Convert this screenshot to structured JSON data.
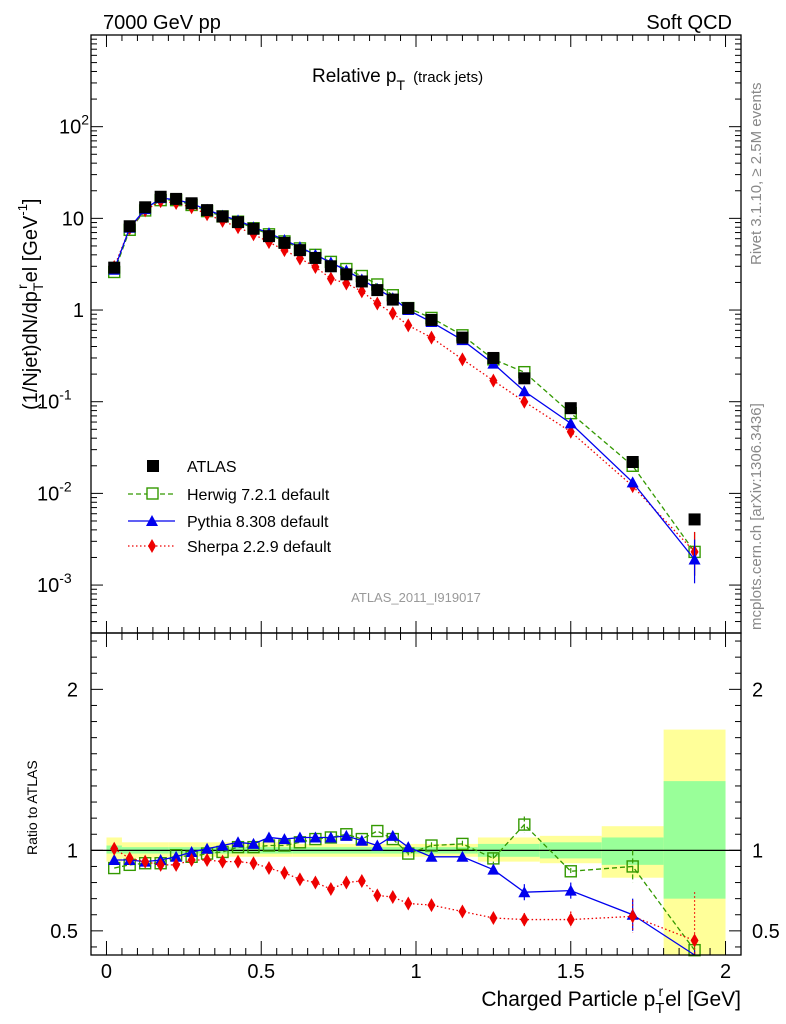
{
  "header": {
    "left": "7000 GeV pp",
    "right": "Soft QCD"
  },
  "side_labels": {
    "rivet": "Rivet 3.1.10, ≥ 2.5M events",
    "mcplots": "mcplots.cern.ch [arXiv:1306.3436]"
  },
  "analysis_id": "ATLAS_2011_I919017",
  "colors": {
    "atlas": "#000000",
    "herwig": "#339900",
    "pythia": "#0000ee",
    "sherpa": "#ee0000",
    "band_inner": "#99ff99",
    "band_outer": "#ffff99"
  },
  "chart_data": [
    {
      "type": "line",
      "scale": "log",
      "title_main": "Relative p",
      "title_sub": "T",
      "title_suffix": "(track jets)",
      "ylabel_main": "(1/Njet)dN/dp",
      "ylabel_sub": "T",
      "ylabel_sup": "r",
      "ylabel_rest": "el [GeV",
      "ylabel_unit_sup": "-1",
      "ylabel_close": "]",
      "ylim": [
        0.0003,
        1000
      ],
      "xlim": [
        -0.05,
        2.05
      ],
      "y_ticks": [
        {
          "value": 0.001,
          "base": "10",
          "exp": "-3"
        },
        {
          "value": 0.01,
          "base": "10",
          "exp": "-2"
        },
        {
          "value": 0.1,
          "base": "10",
          "exp": "-1"
        },
        {
          "value": 1,
          "base": "1",
          "exp": ""
        },
        {
          "value": 10,
          "base": "10",
          "exp": ""
        },
        {
          "value": 100,
          "base": "10",
          "exp": "2"
        }
      ],
      "x": [
        0.025,
        0.075,
        0.125,
        0.175,
        0.225,
        0.275,
        0.325,
        0.375,
        0.425,
        0.475,
        0.525,
        0.575,
        0.625,
        0.675,
        0.725,
        0.775,
        0.825,
        0.875,
        0.925,
        0.975,
        1.05,
        1.15,
        1.25,
        1.35,
        1.5,
        1.7,
        1.9
      ],
      "series": [
        {
          "name": "ATLAS",
          "style": "data",
          "values": [
            2.9,
            8.2,
            13.2,
            17.2,
            16.3,
            14.6,
            12.3,
            10.5,
            9.1,
            7.7,
            6.4,
            5.4,
            4.5,
            3.7,
            3.0,
            2.45,
            2.05,
            1.65,
            1.3,
            1.05,
            0.78,
            0.5,
            0.3,
            0.18,
            0.085,
            0.022,
            0.0052
          ]
        },
        {
          "name": "Herwig 7.2.1 default",
          "style": "herwig",
          "values": [
            2.6,
            7.5,
            12.2,
            15.8,
            15.8,
            14.0,
            12.0,
            10.5,
            9.2,
            7.8,
            6.7,
            5.6,
            4.7,
            4.0,
            3.35,
            2.8,
            2.35,
            1.9,
            1.45,
            1.05,
            0.82,
            0.53,
            0.29,
            0.21,
            0.075,
            0.02,
            0.0023
          ]
        },
        {
          "name": "Pythia 8.308 default",
          "style": "pythia",
          "values": [
            2.75,
            7.9,
            12.6,
            16.6,
            16.0,
            14.5,
            12.4,
            10.7,
            9.5,
            8.0,
            6.9,
            5.8,
            4.85,
            4.0,
            3.3,
            2.7,
            2.15,
            1.7,
            1.35,
            1.0,
            0.74,
            0.47,
            0.26,
            0.13,
            0.058,
            0.0132,
            0.0019
          ]
        },
        {
          "name": "Sherpa 2.2.9 default",
          "style": "sherpa",
          "values": [
            2.95,
            7.8,
            12.2,
            15.4,
            14.7,
            13.2,
            11.1,
            9.4,
            8.0,
            6.7,
            5.5,
            4.5,
            3.65,
            2.95,
            2.2,
            1.95,
            1.6,
            1.18,
            0.92,
            0.68,
            0.5,
            0.29,
            0.17,
            0.1,
            0.047,
            0.012,
            0.0023
          ]
        }
      ],
      "legend_placement": "lower-left"
    },
    {
      "type": "line",
      "ylabel": "Ratio to ATLAS",
      "xlabel_main": "Charged Particle p",
      "xlabel_sub": "T",
      "xlabel_sup": "r",
      "xlabel_rest": "el [GeV]",
      "ylim": [
        0.35,
        2.35
      ],
      "xlim": [
        -0.05,
        2.05
      ],
      "x_ticks": [
        "0",
        "0.5",
        "1",
        "1.5",
        "2"
      ],
      "x_tick_values": [
        0,
        0.5,
        1,
        1.5,
        2
      ],
      "y_ticks": [
        "0.5",
        "1",
        "2"
      ],
      "y_tick_values": [
        0.5,
        1,
        2
      ],
      "reference_line": 1,
      "bands": [
        {
          "x0": 0.0,
          "x1": 0.05,
          "inner": [
            0.98,
            1.03
          ],
          "outer": [
            0.93,
            1.08
          ]
        },
        {
          "x0": 0.05,
          "x1": 0.2,
          "inner": [
            0.98,
            1.02
          ],
          "outer": [
            0.95,
            1.05
          ]
        },
        {
          "x0": 0.2,
          "x1": 0.6,
          "inner": [
            0.98,
            1.02
          ],
          "outer": [
            0.96,
            1.05
          ]
        },
        {
          "x0": 0.6,
          "x1": 1.2,
          "inner": [
            0.98,
            1.02
          ],
          "outer": [
            0.96,
            1.04
          ]
        },
        {
          "x0": 1.2,
          "x1": 1.4,
          "inner": [
            0.96,
            1.04
          ],
          "outer": [
            0.93,
            1.08
          ]
        },
        {
          "x0": 1.4,
          "x1": 1.6,
          "inner": [
            0.95,
            1.05
          ],
          "outer": [
            0.92,
            1.09
          ]
        },
        {
          "x0": 1.6,
          "x1": 1.8,
          "inner": [
            0.91,
            1.08
          ],
          "outer": [
            0.83,
            1.15
          ]
        },
        {
          "x0": 1.8,
          "x1": 2.0,
          "inner": [
            0.7,
            1.43
          ],
          "outer": [
            0.35,
            1.75
          ]
        }
      ],
      "x": [
        0.025,
        0.075,
        0.125,
        0.175,
        0.225,
        0.275,
        0.325,
        0.375,
        0.425,
        0.475,
        0.525,
        0.575,
        0.625,
        0.675,
        0.725,
        0.775,
        0.825,
        0.875,
        0.925,
        0.975,
        1.05,
        1.15,
        1.25,
        1.35,
        1.5,
        1.7,
        1.9
      ],
      "series": [
        {
          "name": "Herwig 7.2.1 default",
          "style": "herwig",
          "values": [
            0.89,
            0.91,
            0.92,
            0.92,
            0.97,
            0.96,
            0.98,
            0.99,
            1.02,
            1.02,
            1.03,
            1.03,
            1.05,
            1.07,
            1.08,
            1.1,
            1.07,
            1.12,
            1.07,
            0.98,
            1.03,
            1.04,
            0.95,
            1.16,
            0.87,
            0.9,
            0.38
          ],
          "err": [
            0,
            0,
            0,
            0,
            0,
            0,
            0,
            0,
            0,
            0,
            0,
            0,
            0,
            0,
            0,
            0,
            0,
            0,
            0,
            0.02,
            0.02,
            0.02,
            0.03,
            0.05,
            0.02,
            0.1,
            0.04
          ]
        },
        {
          "name": "Pythia 8.308 default",
          "style": "pythia",
          "values": [
            0.94,
            0.94,
            0.93,
            0.94,
            0.96,
            0.99,
            1.01,
            1.03,
            1.05,
            1.04,
            1.08,
            1.07,
            1.08,
            1.08,
            1.08,
            1.09,
            1.06,
            1.03,
            1.09,
            1.02,
            0.96,
            0.96,
            0.88,
            0.74,
            0.75,
            0.6,
            0.33
          ],
          "err": [
            0,
            0,
            0,
            0,
            0,
            0,
            0,
            0.01,
            0.01,
            0.01,
            0.01,
            0.01,
            0.01,
            0.01,
            0.01,
            0.01,
            0.01,
            0.01,
            0.02,
            0.02,
            0.02,
            0.02,
            0.03,
            0.05,
            0.05,
            0.1,
            0.05
          ]
        },
        {
          "name": "Sherpa 2.2.9 default",
          "style": "sherpa",
          "values": [
            1.01,
            0.95,
            0.93,
            0.91,
            0.91,
            0.94,
            0.94,
            0.93,
            0.93,
            0.92,
            0.89,
            0.86,
            0.82,
            0.8,
            0.76,
            0.8,
            0.81,
            0.72,
            0.71,
            0.67,
            0.66,
            0.62,
            0.58,
            0.57,
            0.57,
            0.59,
            0.44
          ],
          "err": [
            0,
            0.01,
            0.01,
            0.01,
            0.01,
            0.01,
            0.01,
            0.01,
            0.01,
            0.01,
            0.01,
            0.01,
            0.01,
            0.02,
            0.02,
            0.02,
            0.02,
            0.02,
            0.02,
            0.02,
            0.02,
            0.03,
            0.03,
            0.04,
            0.05,
            0.1,
            0.3
          ]
        }
      ]
    }
  ]
}
